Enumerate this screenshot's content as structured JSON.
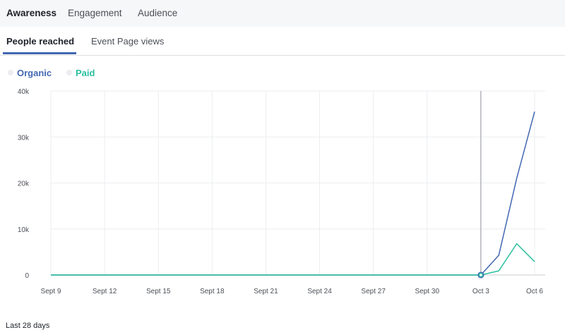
{
  "top_tabs": [
    "Awareness",
    "Engagement",
    "Audience"
  ],
  "sub_tabs": [
    "People reached",
    "Event Page views"
  ],
  "legend": [
    {
      "label": "Organic",
      "color": "#4267b2"
    },
    {
      "label": "Paid",
      "color": "#2bbfa0"
    }
  ],
  "footer_note": "Last 28 days",
  "chart_data": {
    "type": "line",
    "x_ticks": [
      "Sept 9",
      "Sept 12",
      "Sept 15",
      "Sept 18",
      "Sept 21",
      "Sept 24",
      "Sept 27",
      "Sept 30",
      "Oct 3",
      "Oct 6"
    ],
    "x_range": [
      "Sept 9",
      "Oct 6"
    ],
    "y_ticks": [
      "0",
      "10k",
      "20k",
      "30k",
      "40k"
    ],
    "ylim": [
      0,
      40000
    ],
    "grid": true,
    "hover_marker_date": "Oct 3",
    "series": [
      {
        "name": "Organic",
        "color": "#4267b2",
        "points": [
          {
            "x": "Sept 9",
            "y": 0
          },
          {
            "x": "Oct 3",
            "y": 0
          },
          {
            "x": "Oct 4",
            "y": 4300
          },
          {
            "x": "Oct 5",
            "y": 21000
          },
          {
            "x": "Oct 6",
            "y": 35500
          }
        ]
      },
      {
        "name": "Paid",
        "color": "#2bbfa0",
        "points": [
          {
            "x": "Sept 9",
            "y": 0
          },
          {
            "x": "Oct 3",
            "y": 0
          },
          {
            "x": "Oct 4",
            "y": 900
          },
          {
            "x": "Oct 5",
            "y": 6800
          },
          {
            "x": "Oct 6",
            "y": 2900
          }
        ]
      }
    ]
  }
}
